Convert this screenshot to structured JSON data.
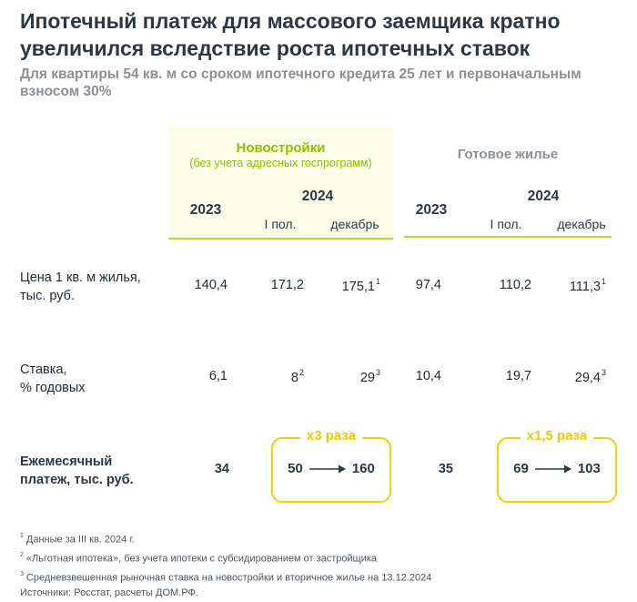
{
  "header": {
    "title": "Ипотечный платеж для массового заемщика кратно увеличился вследствие роста ипотечных ставок",
    "subtitle": "Для квартиры 54 кв. м со сроком ипотечного кредита 25 лет и первоначальным взносом 30%"
  },
  "groups": {
    "new_buildings": {
      "title": "Новостройки",
      "subtitle": "(без учета адресных госпрограмм)",
      "year_a": "2023",
      "year_b": "2024",
      "sub_b1": "I пол.",
      "sub_b2": "декабрь"
    },
    "secondary": {
      "title": "Готовое жилье",
      "year_a": "2023",
      "year_b": "2024",
      "sub_b1": "I пол.",
      "sub_b2": "декабрь"
    }
  },
  "rows": {
    "price": {
      "label_line1": "Цена 1 кв. м жилья,",
      "label_line2": "тыс. руб.",
      "nb_2023": "140,4",
      "nb_h1": "171,2",
      "nb_dec": "175,1",
      "nb_dec_note": "1",
      "gz_2023": "97,4",
      "gz_h1": "110,2",
      "gz_dec": "111,3",
      "gz_dec_note": "1"
    },
    "rate": {
      "label_line1": "Ставка,",
      "label_line2": "% годовых",
      "nb_2023": "6,1",
      "nb_h1": "8",
      "nb_h1_note": "2",
      "nb_dec": "29",
      "nb_dec_note": "3",
      "gz_2023": "10,4",
      "gz_h1": "19,7",
      "gz_dec": "29,4",
      "gz_dec_note": "3"
    },
    "payment": {
      "label_line1": "Ежемесячный",
      "label_line2": "платеж, тыс. руб.",
      "nb_2023": "34",
      "nb_from": "50",
      "nb_to": "160",
      "nb_multiplier": "x3 раза",
      "gz_2023": "35",
      "gz_from": "69",
      "gz_to": "103",
      "gz_multiplier": "x1,5 раза"
    }
  },
  "footnotes": {
    "fn1_mark": "1",
    "fn1": "Данные за III кв. 2024 г.",
    "fn2_mark": "2",
    "fn2": "«Льготная ипотека», без учета ипотеки с субсидированием от застройщика",
    "fn3_mark": "3",
    "fn3": "Средневзвешенная рыночная ставка на новостройки и вторичное жилье на 13.12.2024",
    "sources": "Источники: Росстат, расчеты ДОМ.РФ."
  },
  "colors": {
    "accent_green": "#8cc000",
    "panel_bg": "#fbfde8",
    "highlight_yellow": "#f5d000",
    "muted_gray": "#8a9096"
  }
}
